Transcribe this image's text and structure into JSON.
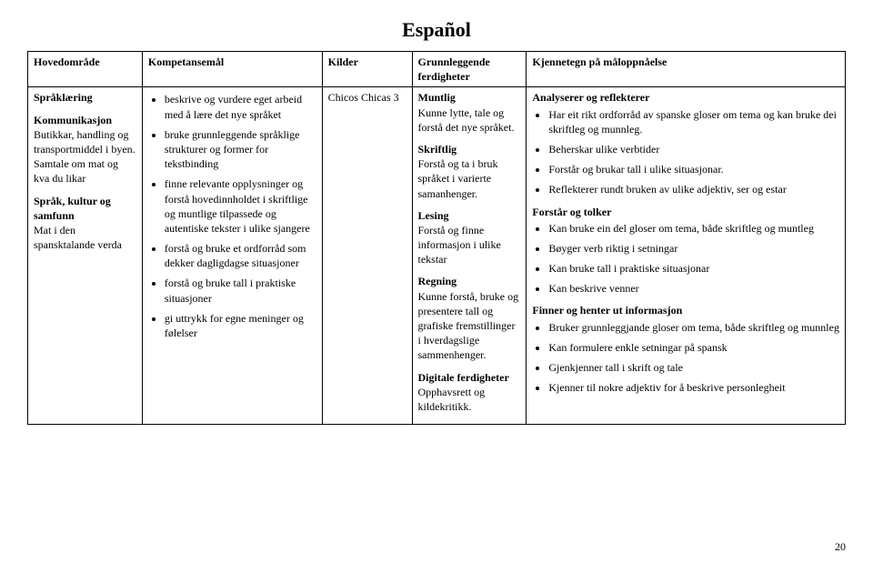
{
  "title": "Español",
  "page_number": "20",
  "headers": {
    "hovedomrade": "Hovedområde",
    "kompetansemal": "Kompetansemål",
    "kilder": "Kilder",
    "grunnleggende": "Grunnleggende ferdigheter",
    "kjennetegn": "Kjennetegn på måloppnåelse"
  },
  "hovedomrade": {
    "spraklaering": {
      "label": "Språklæring"
    },
    "kommunikasjon": {
      "label": "Kommunikasjon",
      "text": "Butikkar, handling og transportmiddel i byen. Samtale om mat og kva du likar"
    },
    "sprak_kultur": {
      "label": "Språk, kultur og samfunn",
      "text": "Mat i den spansktalande verda"
    }
  },
  "kompetansemal": {
    "items": [
      "beskrive og vurdere eget arbeid med å lære det nye språket",
      "bruke grunnleggende språklige strukturer og former for tekstbinding",
      "finne relevante opplysninger og forstå hovedinnholdet i skriftlige og muntlige tilpassede og autentiske tekster i ulike sjangere",
      "forstå og bruke et ordforråd som dekker dagligdagse situasjoner",
      "forstå og bruke tall i praktiske situasjoner",
      "gi uttrykk for egne meninger og følelser"
    ]
  },
  "kilder": {
    "source": "Chicos Chicas 3"
  },
  "grunnleggende": {
    "muntlig": {
      "label": "Muntlig",
      "text": "Kunne lytte, tale og forstå det nye språket."
    },
    "skriftlig": {
      "label": "Skriftlig",
      "text": "Forstå og ta i bruk språket i varierte samanhenger."
    },
    "lesing": {
      "label": "Lesing",
      "text": "Forstå og finne informasjon i ulike tekstar"
    },
    "regning": {
      "label": "Regning",
      "text": "Kunne forstå, bruke og presentere tall og grafiske fremstillinger i hverdagslige sammenhenger."
    },
    "digitale": {
      "label": "Digitale ferdigheter",
      "text": "Opphavsrett og kildekritikk."
    }
  },
  "kjennetegn": {
    "analyserer": {
      "label": "Analyserer og reflekterer",
      "items": [
        "Har eit rikt ordforråd av spanske gloser om tema og kan bruke dei skriftleg og munnleg.",
        "Beherskar ulike verbtider",
        "Forstår og brukar tall i ulike situasjonar.",
        "Reflekterer rundt bruken av ulike adjektiv, ser og estar"
      ]
    },
    "forstar": {
      "label": "Forstår og tolker",
      "items": [
        "Kan bruke ein del gloser om tema, både skriftleg og muntleg",
        "Bøyger verb riktig i setningar",
        "Kan bruke tall i praktiske situasjonar",
        "Kan beskrive venner"
      ]
    },
    "finner": {
      "label": "Finner og henter ut informasjon",
      "items": [
        "Bruker grunnleggjande gloser om tema, både skriftleg og munnleg",
        "Kan formulere enkle setningar på spansk",
        "Gjenkjenner tall i skrift og tale",
        "Kjenner til nokre adjektiv for å beskrive personlegheit"
      ]
    }
  }
}
